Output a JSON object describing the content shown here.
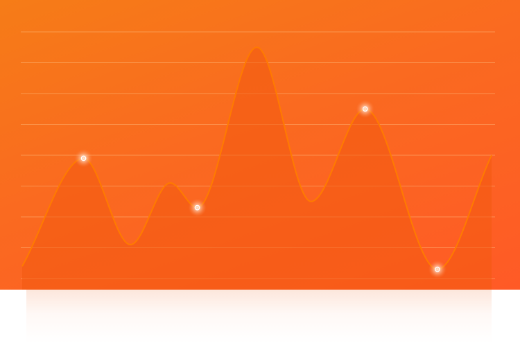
{
  "chart_data": {
    "type": "area",
    "title": "",
    "xlabel": "",
    "ylabel": "",
    "grid": true,
    "legend": "none",
    "smooth": true,
    "ylim": [
      0,
      8
    ],
    "xlim": [
      0,
      13
    ],
    "gridlines": [
      0,
      1,
      2,
      3,
      4,
      5,
      6,
      7,
      8
    ],
    "series": [
      {
        "values": [
          {
            "x": 0,
            "y": 0.4
          },
          {
            "x": 1.7,
            "y": 3.9
          },
          {
            "x": 3.0,
            "y": 1.1
          },
          {
            "x": 4.1,
            "y": 3.1
          },
          {
            "x": 4.85,
            "y": 2.3
          },
          {
            "x": 6.5,
            "y": 7.5
          },
          {
            "x": 8.0,
            "y": 2.5
          },
          {
            "x": 9.5,
            "y": 5.5
          },
          {
            "x": 11.5,
            "y": 0.3
          },
          {
            "x": 13.0,
            "y": 4.0
          }
        ],
        "highlighted_points": [
          {
            "x": 1.7,
            "y": 3.9
          },
          {
            "x": 4.85,
            "y": 2.3
          },
          {
            "x": 9.5,
            "y": 5.5
          },
          {
            "x": 11.5,
            "y": 0.3
          }
        ],
        "line_color": "#ff7a00",
        "fill_color": "#f25a10"
      }
    ]
  }
}
